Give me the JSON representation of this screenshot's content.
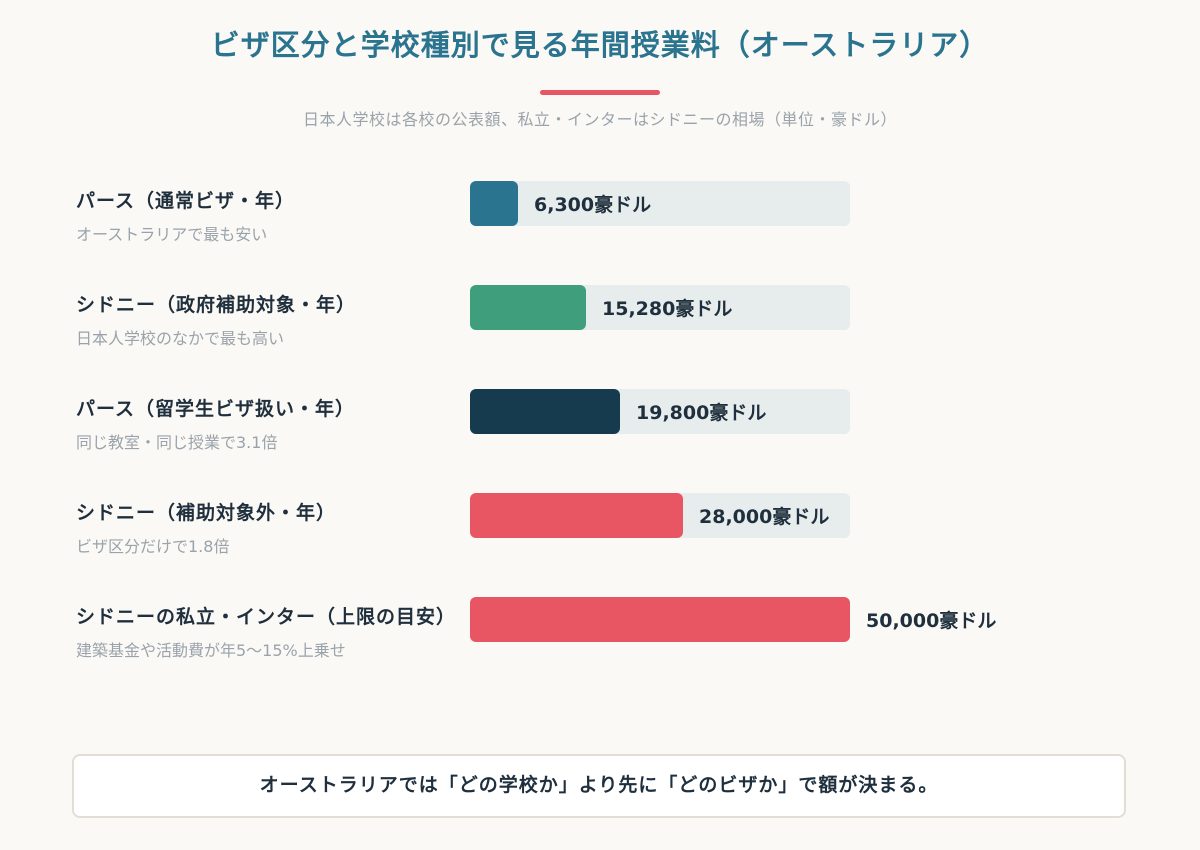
{
  "header": {
    "title": "ビザ区分と学校種別で見る年間授業料（オーストラリア）",
    "subtitle": "日本人学校は各校の公表額、私立・インターはシドニーの相場（単位・豪ドル）"
  },
  "footer": {
    "text": "オーストラリアでは「どの学校か」より先に「どのビザか」で額が決まる。"
  },
  "colors": {
    "title": "#2b7490",
    "accent": "#e85563",
    "track": "#e7ecec"
  },
  "chart_data": {
    "type": "bar",
    "orientation": "horizontal",
    "unit": "豪ドル",
    "max": 50000,
    "categories": [
      "パース（通常ビザ・年）",
      "シドニー（政府補助対象・年）",
      "パース（留学生ビザ扱い・年）",
      "シドニー（補助対象外・年）",
      "シドニーの私立・インター（上限の目安）"
    ],
    "notes": [
      "オーストラリアで最も安い",
      "日本人学校のなかで最も高い",
      "同じ教室・同じ授業で3.1倍",
      "ビザ区分だけで1.8倍",
      "建築基金や活動費が年5〜15%上乗せ"
    ],
    "values": [
      6300,
      15280,
      19800,
      28000,
      50000
    ],
    "value_labels": [
      "6,300豪ドル",
      "15,280豪ドル",
      "19,800豪ドル",
      "28,000豪ドル",
      "50,000豪ドル"
    ],
    "colors": [
      "#2b7490",
      "#3f9f7c",
      "#163b4f",
      "#e85563",
      "#e85563"
    ]
  }
}
